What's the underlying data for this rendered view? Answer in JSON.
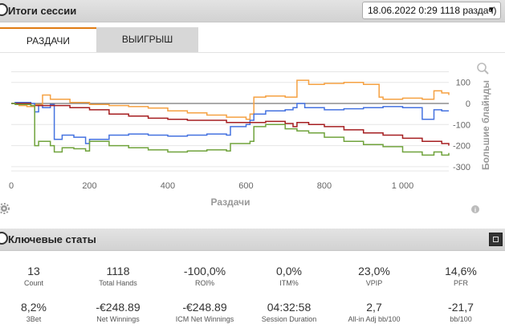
{
  "session": {
    "title": "Итоги сессии",
    "selector_value": "18.06.2022 0:29 1118 раздач)"
  },
  "tabs": [
    {
      "label": "РАЗДАЧИ",
      "active": true
    },
    {
      "label": "ВЫИГРЫШ",
      "active": false
    }
  ],
  "chart_data": {
    "type": "line",
    "xlabel": "Раздачи",
    "ylabel": "Большие блайнды",
    "x_ticks": [
      "0",
      "200",
      "400",
      "600",
      "800",
      "1 000"
    ],
    "y_ticks": [
      "100",
      "0",
      "-100",
      "-200",
      "-300"
    ],
    "xlim": [
      0,
      1118
    ],
    "ylim": [
      -320,
      150
    ],
    "grid": true,
    "series": [
      {
        "key": "orange",
        "color": "#f5a142",
        "x": [
          0,
          20,
          40,
          60,
          80,
          100,
          150,
          200,
          250,
          300,
          350,
          400,
          450,
          500,
          550,
          600,
          610,
          620,
          650,
          700,
          730,
          760,
          800,
          850,
          900,
          940,
          950,
          1000,
          1050,
          1080,
          1100,
          1118
        ],
        "y": [
          0,
          -10,
          -15,
          -5,
          40,
          20,
          5,
          -5,
          -10,
          -15,
          -22,
          -35,
          -45,
          -55,
          -65,
          -75,
          -50,
          30,
          35,
          30,
          110,
          90,
          95,
          100,
          90,
          30,
          20,
          25,
          20,
          60,
          50,
          40
        ]
      },
      {
        "key": "blue",
        "color": "#4472e0",
        "x": [
          0,
          10,
          50,
          60,
          70,
          80,
          100,
          110,
          130,
          160,
          190,
          200,
          250,
          300,
          350,
          400,
          450,
          500,
          550,
          560,
          600,
          610,
          620,
          650,
          700,
          720,
          730,
          750,
          800,
          850,
          900,
          950,
          1000,
          1050,
          1080,
          1100,
          1118
        ],
        "y": [
          0,
          5,
          0,
          -40,
          -10,
          -20,
          -5,
          -170,
          -150,
          -160,
          -190,
          -170,
          -150,
          -145,
          -150,
          -155,
          -150,
          -145,
          -150,
          -110,
          -100,
          -80,
          -50,
          -35,
          -30,
          -20,
          0,
          -20,
          -30,
          -25,
          -20,
          -15,
          -20,
          -75,
          -30,
          -35,
          -35
        ]
      },
      {
        "key": "darkred",
        "color": "#a51e20",
        "x": [
          0,
          50,
          100,
          150,
          200,
          250,
          300,
          350,
          400,
          450,
          500,
          550,
          600,
          650,
          700,
          720,
          730,
          760,
          800,
          850,
          900,
          950,
          1000,
          1050,
          1100,
          1118
        ],
        "y": [
          0,
          -10,
          -10,
          -20,
          -30,
          -50,
          -60,
          -70,
          -75,
          -80,
          -80,
          -90,
          -90,
          -85,
          -95,
          -110,
          -90,
          -100,
          -110,
          -125,
          -140,
          -150,
          -165,
          -180,
          -190,
          -200
        ]
      },
      {
        "key": "green",
        "color": "#70a33c",
        "x": [
          0,
          10,
          50,
          60,
          70,
          100,
          110,
          130,
          160,
          190,
          200,
          250,
          300,
          350,
          400,
          450,
          500,
          550,
          560,
          600,
          610,
          620,
          650,
          700,
          730,
          760,
          800,
          850,
          900,
          950,
          1000,
          1050,
          1080,
          1100,
          1118
        ],
        "y": [
          0,
          -5,
          -10,
          -200,
          -180,
          -200,
          -230,
          -210,
          -215,
          -225,
          -180,
          -200,
          -210,
          -220,
          -230,
          -225,
          -220,
          -225,
          -190,
          -190,
          -180,
          -110,
          -100,
          -120,
          -130,
          -140,
          -160,
          -180,
          -195,
          -205,
          -230,
          -245,
          -230,
          -245,
          -235
        ]
      }
    ]
  },
  "key_stats": {
    "title": "Ключевые статы",
    "row1": [
      {
        "value": "13",
        "label": "Count"
      },
      {
        "value": "1118",
        "label": "Total Hands"
      },
      {
        "value": "-100,0%",
        "label": "ROI%"
      },
      {
        "value": "0,0%",
        "label": "ITM%"
      },
      {
        "value": "23,0%",
        "label": "VPIP"
      },
      {
        "value": "14,6%",
        "label": "PFR"
      }
    ],
    "row2": [
      {
        "value": "8,2%",
        "label": "3Bet"
      },
      {
        "value": "-€248.89",
        "label": "Net Winnings"
      },
      {
        "value": "-€248.89",
        "label": "ICM Net Winnings"
      },
      {
        "value": "04:32:58",
        "label": "Session Duration"
      },
      {
        "value": "2,7",
        "label": "All-in Adj bb/100"
      },
      {
        "value": "-21,7",
        "label": "bb/100"
      }
    ]
  },
  "icons": {
    "header_toggle": "collapse-circle-icon",
    "zoom": "magnifier-icon",
    "settings": "gear-icon",
    "info": "info-icon",
    "expand": "maximize-icon"
  }
}
